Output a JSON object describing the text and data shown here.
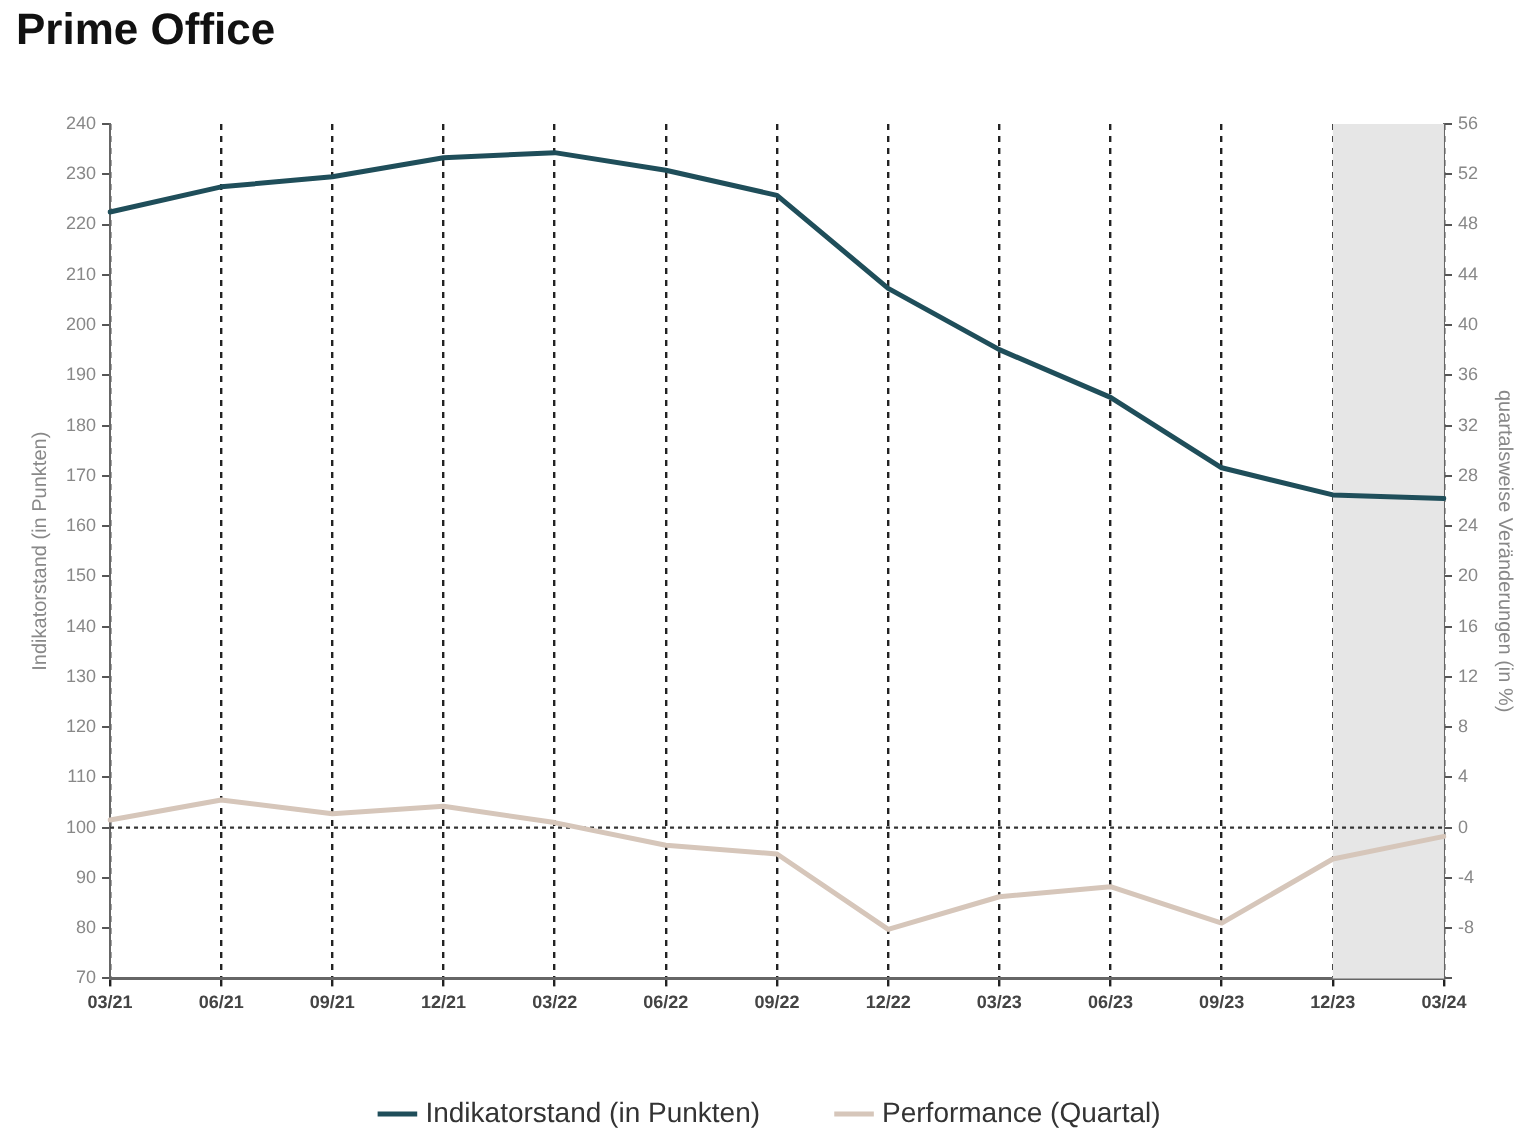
{
  "chart_data": {
    "type": "line",
    "title": "Prime Office",
    "ylabel": "Indikatorstand (in Punkten)",
    "y2label": "quartalsweise Veränderungen (in %)",
    "categories": [
      "03/21",
      "06/21",
      "09/21",
      "12/21",
      "03/22",
      "06/22",
      "09/22",
      "12/22",
      "03/23",
      "06/23",
      "09/23",
      "12/23",
      "03/24"
    ],
    "series": [
      {
        "name": "Indikatorstand (in Punkten)",
        "color": "#1f4e5a",
        "values": [
          222.5,
          227.5,
          229.5,
          233.3,
          234.3,
          230.8,
          225.8,
          207.3,
          195.1,
          185.6,
          171.6,
          166.2,
          165.5
        ]
      },
      {
        "name": "Performance (Quartal)",
        "color": "#d6c6ba",
        "axis": "y2",
        "values": [
          0.6,
          2.2,
          1.1,
          1.7,
          0.4,
          -1.4,
          -2.1,
          -8.1,
          -5.5,
          -4.7,
          -7.6,
          -2.5,
          -0.7
        ]
      }
    ],
    "ylim": [
      70,
      240
    ],
    "yticks": [
      70,
      80,
      90,
      100,
      110,
      120,
      130,
      140,
      150,
      160,
      170,
      180,
      190,
      200,
      210,
      220,
      230,
      240
    ],
    "y2lim": [
      -12,
      56
    ],
    "y2ticks": [
      {
        "value": -12,
        "label": null
      },
      -8,
      -4,
      0,
      4,
      8,
      12,
      16,
      20,
      24,
      28,
      32,
      36,
      40,
      44,
      48,
      52,
      56
    ],
    "ref_lines": [
      {
        "axis": "y2",
        "value": 0,
        "color": "#333333",
        "line_style": "dotted"
      }
    ],
    "bands": [
      {
        "axis": "x",
        "from": "12/23",
        "to": "03/24",
        "color": "#e6e6e6"
      }
    ],
    "grid": "x",
    "legend": "bottom",
    "marker": "none",
    "line_style": "solid"
  }
}
